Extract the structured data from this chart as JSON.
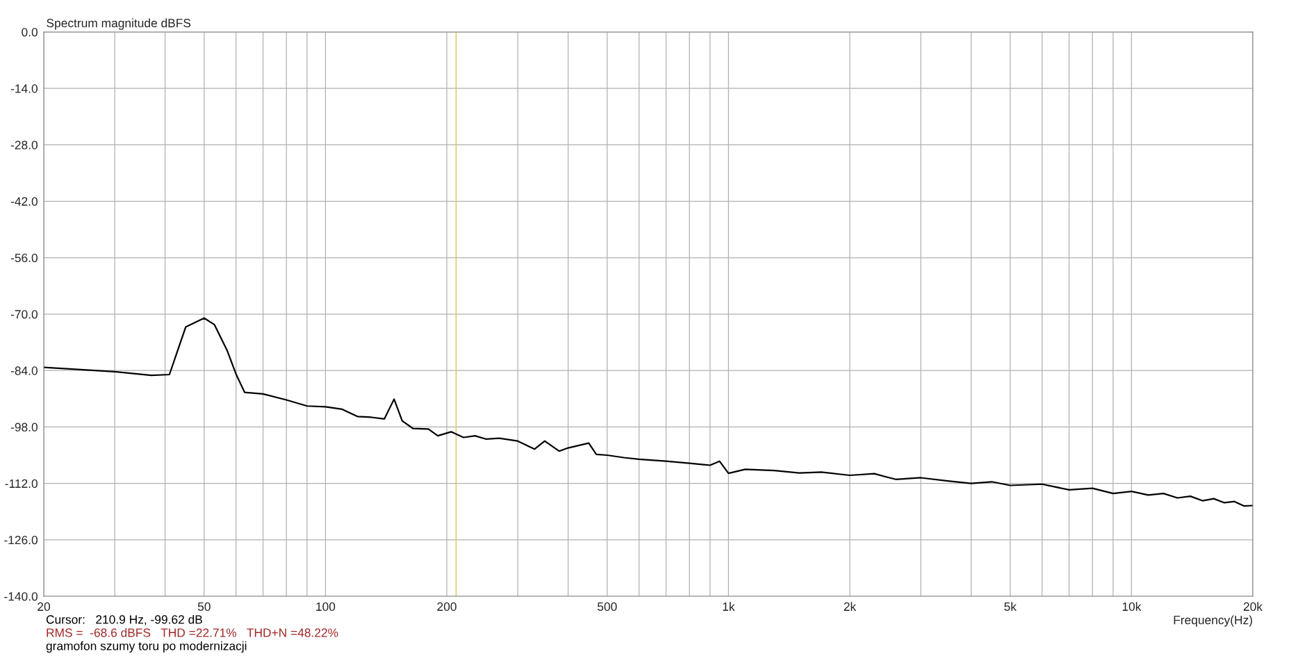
{
  "chart_data": {
    "type": "line",
    "title": "Spectrum magnitude dBFS",
    "xlabel": "Frequency(Hz)",
    "log": "x",
    "grid": true,
    "line_style": "solid",
    "marker": "none",
    "xlim": [
      20,
      20000
    ],
    "ylim": [
      -140,
      0
    ],
    "xticks": [
      20,
      {
        "value": 30,
        "label": null
      },
      {
        "value": 40,
        "label": null
      },
      50,
      {
        "value": 60,
        "label": null
      },
      {
        "value": 70,
        "label": null
      },
      {
        "value": 80,
        "label": null
      },
      {
        "value": 90,
        "label": null
      },
      100,
      200,
      {
        "value": 300,
        "label": null
      },
      {
        "value": 400,
        "label": null
      },
      500,
      {
        "value": 600,
        "label": null
      },
      {
        "value": 700,
        "label": null
      },
      {
        "value": 800,
        "label": null
      },
      {
        "value": 900,
        "label": null
      },
      {
        "value": 1000,
        "label": "1k"
      },
      {
        "value": 2000,
        "label": "2k"
      },
      {
        "value": 3000,
        "label": null
      },
      {
        "value": 4000,
        "label": null
      },
      {
        "value": 5000,
        "label": "5k"
      },
      {
        "value": 6000,
        "label": null
      },
      {
        "value": 7000,
        "label": null
      },
      {
        "value": 8000,
        "label": null
      },
      {
        "value": 9000,
        "label": null
      },
      {
        "value": 10000,
        "label": "10k"
      },
      {
        "value": 20000,
        "label": "20k"
      }
    ],
    "yticks": [
      {
        "value": -140,
        "label": "-140.0"
      },
      {
        "value": -126,
        "label": "-126.0"
      },
      {
        "value": -112,
        "label": "-112.0"
      },
      {
        "value": -98,
        "label": "-98.0"
      },
      {
        "value": -84,
        "label": "-84.0"
      },
      {
        "value": -70,
        "label": "-70.0"
      },
      {
        "value": -56,
        "label": "-56.0"
      },
      {
        "value": -42,
        "label": "-42.0"
      },
      {
        "value": -28,
        "label": "-28.0"
      },
      {
        "value": -14,
        "label": "-14.0"
      },
      {
        "value": 0,
        "label": "0.0"
      }
    ],
    "ref_lines": [
      {
        "axis": "x",
        "value": 210.9,
        "color": "#d4c45a"
      }
    ],
    "series": [
      {
        "color": "#000000",
        "x": [
          20,
          30,
          37,
          41,
          45,
          50,
          53,
          57,
          60,
          63,
          70,
          80,
          90,
          100,
          110,
          120,
          130,
          140,
          148,
          155,
          165,
          180,
          190,
          205,
          220,
          235,
          250,
          270,
          300,
          330,
          350,
          380,
          400,
          450,
          470,
          500,
          550,
          600,
          700,
          800,
          900,
          950,
          1000,
          1100,
          1300,
          1500,
          1700,
          2000,
          2300,
          2600,
          3000,
          3500,
          4000,
          4500,
          5000,
          6000,
          7000,
          8000,
          9000,
          10000,
          11000,
          12000,
          13000,
          14000,
          15000,
          16000,
          17000,
          18000,
          19000,
          20000
        ],
        "values": [
          -83.2,
          -84.3,
          -85.2,
          -85.0,
          -73.2,
          -71.0,
          -72.6,
          -79.0,
          -84.9,
          -89.4,
          -89.8,
          -91.3,
          -92.8,
          -93.0,
          -93.6,
          -95.4,
          -95.6,
          -96.0,
          -91.1,
          -96.5,
          -98.4,
          -98.5,
          -100.2,
          -99.2,
          -100.6,
          -100.2,
          -101.0,
          -100.8,
          -101.5,
          -103.5,
          -101.5,
          -104.0,
          -103.2,
          -102.0,
          -104.8,
          -105.0,
          -105.6,
          -106.0,
          -106.5,
          -107.0,
          -107.5,
          -106.5,
          -109.5,
          -108.5,
          -108.8,
          -109.4,
          -109.2,
          -110.0,
          -109.6,
          -111.0,
          -110.6,
          -111.4,
          -112.0,
          -111.6,
          -112.5,
          -112.2,
          -113.6,
          -113.2,
          -114.5,
          -114.0,
          -114.9,
          -114.5,
          -115.6,
          -115.2,
          -116.3,
          -115.8,
          -116.8,
          -116.5,
          -117.6,
          -117.5
        ]
      }
    ],
    "annotations": [
      "Cursor:   210.9 Hz, -99.62 dB",
      "RMS =  -68.6 dBFS   THD =22.71%   THD+N =48.22%",
      "gramofon szumy toru po modernizacji"
    ]
  }
}
